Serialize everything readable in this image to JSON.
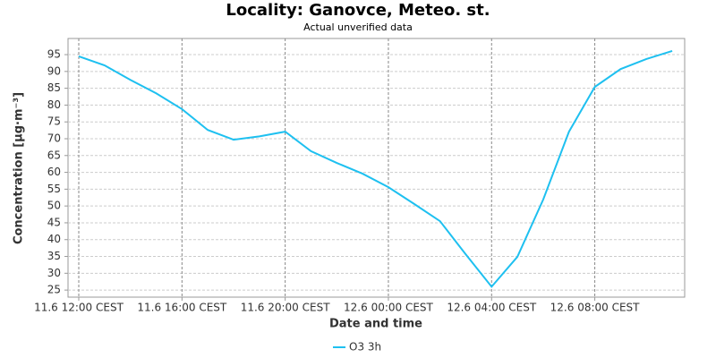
{
  "chart_data": {
    "type": "line",
    "title": "Locality: Ganovce, Meteo. st.",
    "subtitle": "Actual unverified data",
    "x_label": "Date and time",
    "y_label": "Concentration [µg·m⁻³]",
    "x": [
      "11.6 12:00",
      "11.6 13:00",
      "11.6 14:00",
      "11.6 15:00",
      "11.6 16:00",
      "11.6 17:00",
      "11.6 18:00",
      "11.6 19:00",
      "11.6 20:00",
      "11.6 21:00",
      "11.6 22:00",
      "11.6 23:00",
      "12.6 00:00",
      "12.6 01:00",
      "12.6 02:00",
      "12.6 03:00",
      "12.6 04:00",
      "12.6 05:00",
      "12.6 06:00",
      "12.6 07:00",
      "12.6 08:00",
      "12.6 09:00",
      "12.6 10:00",
      "12.6 11:00"
    ],
    "series": [
      {
        "name": "O3 3h",
        "color": "#1ec0f0",
        "values": [
          94.5,
          91.8,
          87.5,
          83.5,
          78.8,
          72.6,
          69.7,
          70.7,
          72.1,
          66.3,
          62.8,
          59.6,
          55.6,
          50.6,
          45.5,
          35.6,
          26,
          34.9,
          51.9,
          72.1,
          85.4,
          90.7,
          93.7,
          96.1
        ]
      }
    ],
    "xlim": [
      "11.6 11:35",
      "12.6 11:29"
    ],
    "xticks": [
      {
        "value": "11.6 12:00",
        "label": "11.6 12:00 CEST"
      },
      {
        "value": "11.6 16:00",
        "label": "11.6 16:00 CEST"
      },
      {
        "value": "11.6 20:00",
        "label": "11.6 20:00 CEST"
      },
      {
        "value": "12.6 00:00",
        "label": "12.6 00:00 CEST"
      },
      {
        "value": "12.6 04:00",
        "label": "12.6 04:00 CEST"
      },
      {
        "value": "12.6 08:00",
        "label": "12.6 08:00 CEST"
      }
    ],
    "ylim": [
      22.9,
      99.8
    ],
    "yticks": [
      25,
      30,
      35,
      40,
      45,
      50,
      55,
      60,
      65,
      70,
      75,
      80,
      85,
      90,
      95
    ],
    "grid": true,
    "legend": "bottom"
  }
}
